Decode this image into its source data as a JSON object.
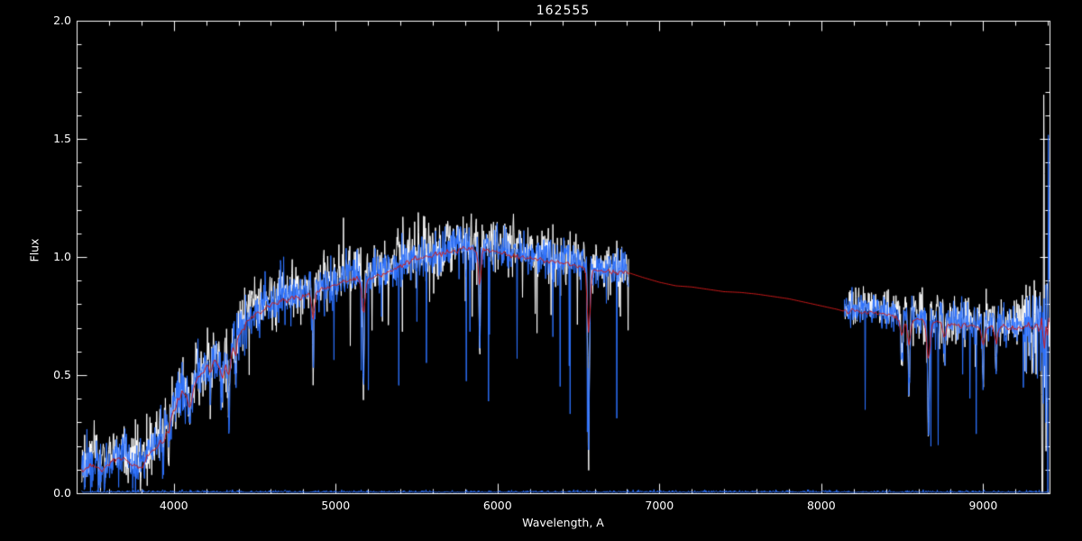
{
  "title": "162555",
  "xlabel": "Wavelength, A",
  "ylabel": "Flux",
  "chart_data": {
    "type": "line",
    "title": "162555",
    "xlabel": "Wavelength, A",
    "ylabel": "Flux",
    "xlim": [
      3400,
      9410
    ],
    "ylim": [
      0.0,
      2.0
    ],
    "x_ticks": [
      "4000",
      "5000",
      "6000",
      "7000",
      "8000",
      "9000"
    ],
    "y_ticks": [
      "0.0",
      "0.5",
      "1.0",
      "1.5",
      "2.0"
    ],
    "x_minor_step": 200,
    "y_minor_step": 0.1,
    "grid": false,
    "background": "#000000",
    "axis_color": "#ffffff",
    "legend": "none",
    "series": [
      {
        "name": "observed-spectrum-alt",
        "color": "#ffffff",
        "role": "observed spectrum, unsmoothed (white fringe)"
      },
      {
        "name": "observed-spectrum",
        "color": "#2d72ff",
        "role": "observed stellar spectrum (blue)"
      },
      {
        "name": "model-spectrum",
        "color": "#cc1a1a",
        "role": "template / model fit (red), continuous across masked gap"
      },
      {
        "name": "zero-level-trace",
        "color": "#2d72ff",
        "role": "near-zero flux trace along bottom axis"
      }
    ],
    "gap": [
      6810,
      8140
    ],
    "seed": 20,
    "step": 2.8,
    "continuum": [
      [
        3430,
        0.1
      ],
      [
        3500,
        0.13
      ],
      [
        3560,
        0.11
      ],
      [
        3620,
        0.15
      ],
      [
        3680,
        0.16
      ],
      [
        3740,
        0.13
      ],
      [
        3800,
        0.12
      ],
      [
        3850,
        0.18
      ],
      [
        3900,
        0.21
      ],
      [
        3950,
        0.27
      ],
      [
        4000,
        0.36
      ],
      [
        4050,
        0.44
      ],
      [
        4100,
        0.42
      ],
      [
        4150,
        0.5
      ],
      [
        4200,
        0.54
      ],
      [
        4250,
        0.57
      ],
      [
        4300,
        0.55
      ],
      [
        4350,
        0.6
      ],
      [
        4400,
        0.68
      ],
      [
        4450,
        0.73
      ],
      [
        4500,
        0.77
      ],
      [
        4600,
        0.81
      ],
      [
        4700,
        0.83
      ],
      [
        4800,
        0.85
      ],
      [
        4900,
        0.87
      ],
      [
        5000,
        0.9
      ],
      [
        5100,
        0.92
      ],
      [
        5200,
        0.92
      ],
      [
        5300,
        0.94
      ],
      [
        5400,
        0.97
      ],
      [
        5500,
        1.0
      ],
      [
        5600,
        1.02
      ],
      [
        5700,
        1.035
      ],
      [
        5800,
        1.045
      ],
      [
        5900,
        1.04
      ],
      [
        6000,
        1.03
      ],
      [
        6100,
        1.02
      ],
      [
        6200,
        1.005
      ],
      [
        6300,
        0.995
      ],
      [
        6400,
        0.985
      ],
      [
        6500,
        0.97
      ],
      [
        6600,
        0.955
      ],
      [
        6700,
        0.945
      ],
      [
        6810,
        0.945
      ],
      [
        6900,
        0.925
      ],
      [
        7000,
        0.905
      ],
      [
        7100,
        0.89
      ],
      [
        7200,
        0.885
      ],
      [
        7300,
        0.875
      ],
      [
        7400,
        0.865
      ],
      [
        7500,
        0.862
      ],
      [
        7600,
        0.855
      ],
      [
        7700,
        0.845
      ],
      [
        7800,
        0.835
      ],
      [
        7900,
        0.82
      ],
      [
        8000,
        0.805
      ],
      [
        8100,
        0.79
      ],
      [
        8140,
        0.782
      ],
      [
        8200,
        0.785
      ],
      [
        8300,
        0.775
      ],
      [
        8400,
        0.77
      ],
      [
        8500,
        0.755
      ],
      [
        8600,
        0.745
      ],
      [
        8700,
        0.735
      ],
      [
        8800,
        0.725
      ],
      [
        8900,
        0.72
      ],
      [
        9000,
        0.715
      ],
      [
        9100,
        0.72
      ],
      [
        9200,
        0.71
      ],
      [
        9300,
        0.705
      ],
      [
        9410,
        0.7
      ]
    ],
    "absorption_lines": [
      [
        3933,
        0.45,
        6
      ],
      [
        3968,
        0.4,
        6
      ],
      [
        4101,
        0.4,
        7
      ],
      [
        4227,
        0.25,
        5
      ],
      [
        4300,
        0.22,
        10
      ],
      [
        4340,
        0.4,
        7
      ],
      [
        4383,
        0.28,
        5
      ],
      [
        4861,
        0.38,
        7
      ],
      [
        5172,
        0.5,
        7
      ],
      [
        5890,
        0.45,
        6
      ],
      [
        6563,
        0.85,
        7
      ],
      [
        8498,
        0.3,
        8
      ],
      [
        8542,
        0.4,
        8
      ],
      [
        8662,
        0.65,
        8
      ],
      [
        8760,
        0.25,
        7
      ],
      [
        9000,
        0.35,
        7
      ],
      [
        9080,
        0.28,
        7
      ]
    ],
    "noise": {
      "amp_regions": [
        [
          3400,
          4000,
          0.05
        ],
        [
          4000,
          4500,
          0.058
        ],
        [
          4500,
          5000,
          0.05
        ],
        [
          5000,
          6000,
          0.045
        ],
        [
          6000,
          6810,
          0.042
        ],
        [
          6810,
          8140,
          0.0
        ],
        [
          8140,
          8600,
          0.034
        ],
        [
          8600,
          9250,
          0.04
        ],
        [
          9250,
          9360,
          0.085
        ],
        [
          9360,
          9410,
          0.42
        ]
      ],
      "spike_regions": [
        [
          4300,
          5000,
          0.01,
          0.35
        ],
        [
          5000,
          6810,
          0.03,
          0.55
        ],
        [
          8140,
          8550,
          0.012,
          0.3
        ],
        [
          8550,
          9250,
          0.022,
          0.45
        ]
      ]
    }
  }
}
